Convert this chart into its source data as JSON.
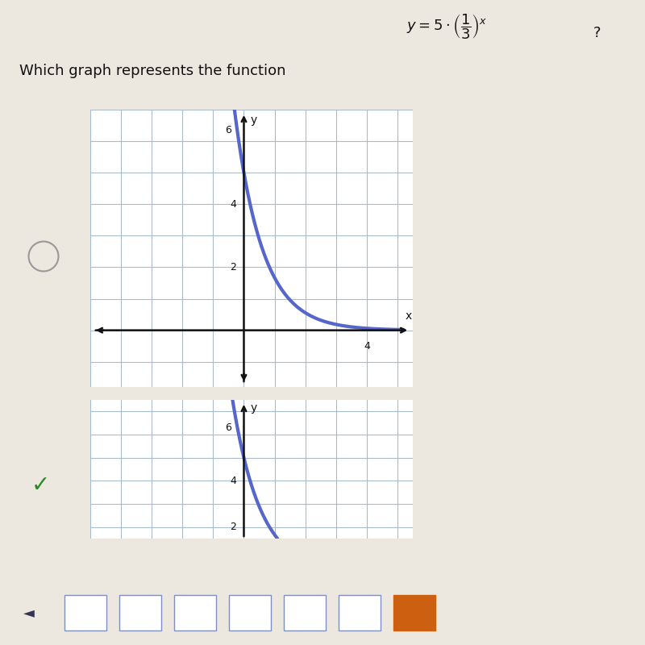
{
  "background_color": "#ede8df",
  "title_text": "Which graph represents the function",
  "graph1": {
    "xlim": [
      -5.0,
      5.5
    ],
    "ylim": [
      -1.8,
      7.0
    ],
    "curve_color": "#5566cc",
    "curve_linewidth": 3.0,
    "grid_color": "#aabccc",
    "axis_color": "#111111",
    "x_curve_start": -2.2,
    "x_curve_end": 5.2
  },
  "graph2": {
    "xlim": [
      -5.0,
      5.5
    ],
    "ylim": [
      1.5,
      7.5
    ],
    "curve_color": "#5566cc",
    "curve_linewidth": 3.0,
    "grid_color": "#aabccc",
    "axis_color": "#111111",
    "x_curve_start": -0.6,
    "x_curve_end": 1.3
  },
  "radio_circle_color": "#999999",
  "checkmark_color": "#2a8a2a",
  "nav_bar_color": "#8090b8",
  "nav_square_color": "#c0c8d8",
  "nav_orange_color": "#cc6010"
}
